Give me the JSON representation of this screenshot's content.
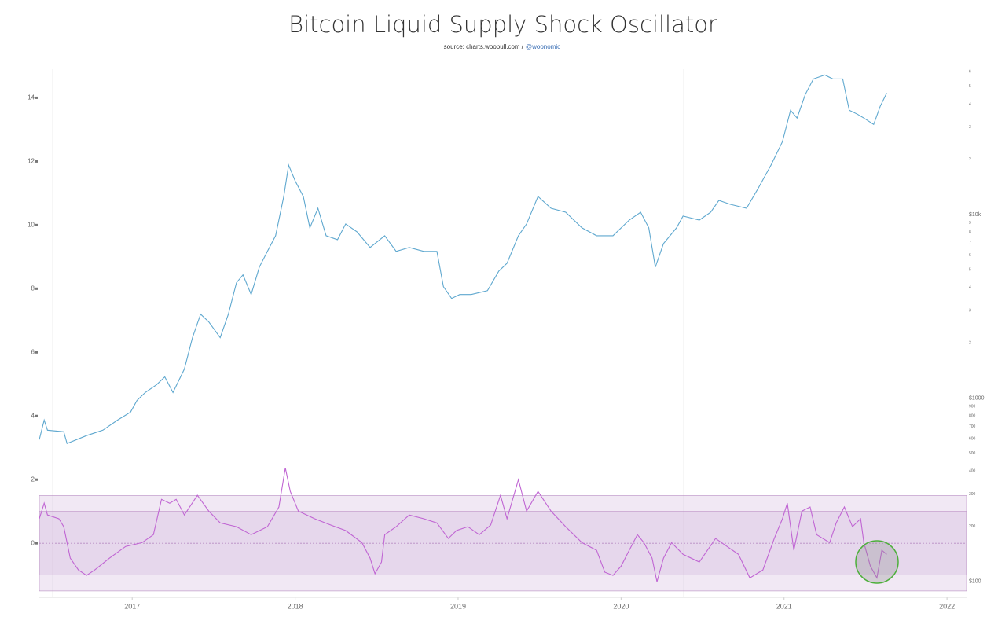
{
  "chart_data": {
    "type": "line",
    "title": "Bitcoin Liquid Supply Shock Oscillator",
    "source": "source: charts.woobull.com /",
    "handle": "@woonomic",
    "xlim": [
      2016.43,
      2022.12
    ],
    "xticks": [
      2017,
      2018,
      2019,
      2020,
      2021,
      2022
    ],
    "ylim": [
      -1.7,
      14.9
    ],
    "yticks": [
      0,
      2,
      4,
      6,
      8,
      10,
      12,
      14
    ],
    "y2lim": [
      82,
      62000
    ],
    "y2log": true,
    "y2ticks": [
      {
        "value": 100,
        "label": "$100"
      },
      200,
      300,
      400,
      500,
      600,
      700,
      800,
      900,
      {
        "value": 1000,
        "label": "$1000"
      },
      {
        "value": 2000,
        "label": "2"
      },
      {
        "value": 3000,
        "label": "3"
      },
      {
        "value": 4000,
        "label": "4"
      },
      {
        "value": 5000,
        "label": "5"
      },
      {
        "value": 6000,
        "label": "6"
      },
      {
        "value": 7000,
        "label": "7"
      },
      {
        "value": 8000,
        "label": "8"
      },
      {
        "value": 9000,
        "label": "9"
      },
      {
        "value": 10000,
        "label": "$10k"
      },
      {
        "value": 20000,
        "label": "2"
      },
      {
        "value": 30000,
        "label": "3"
      },
      {
        "value": 40000,
        "label": "4"
      },
      {
        "value": 50000,
        "label": "5"
      },
      {
        "value": 60000,
        "label": "6"
      }
    ],
    "bands": [
      {
        "from": -1.5,
        "to": 1.5
      },
      {
        "from": -1,
        "to": 1
      }
    ],
    "series": [
      {
        "color": "#5fa8cf",
        "axis": "y2",
        "x": [
          2016.43,
          2016.46,
          2016.48,
          2016.58,
          2016.6,
          2016.72,
          2016.82,
          2016.91,
          2016.99,
          2017.03,
          2017.08,
          2017.15,
          2017.2,
          2017.25,
          2017.32,
          2017.37,
          2017.42,
          2017.47,
          2017.54,
          2017.59,
          2017.64,
          2017.68,
          2017.73,
          2017.78,
          2017.83,
          2017.88,
          2017.93,
          2017.96,
          2018.0,
          2018.05,
          2018.09,
          2018.14,
          2018.19,
          2018.26,
          2018.31,
          2018.38,
          2018.46,
          2018.55,
          2018.62,
          2018.7,
          2018.79,
          2018.87,
          2018.91,
          2018.96,
          2019.01,
          2019.08,
          2019.18,
          2019.25,
          2019.3,
          2019.37,
          2019.42,
          2019.49,
          2019.57,
          2019.66,
          2019.76,
          2019.85,
          2019.95,
          2020.05,
          2020.12,
          2020.17,
          2020.21,
          2020.26,
          2020.34,
          2020.38,
          2020.48,
          2020.55,
          2020.6,
          2020.67,
          2020.77,
          2020.84,
          2020.92,
          2020.99,
          2021.04,
          2021.08,
          2021.13,
          2021.18,
          2021.25,
          2021.3,
          2021.36,
          2021.4,
          2021.45,
          2021.49,
          2021.55,
          2021.59,
          2021.63
        ],
        "values": [
          594,
          758,
          668,
          655,
          565,
          624,
          668,
          758,
          838,
          971,
          1072,
          1183,
          1304,
          1072,
          1440,
          2133,
          2865,
          2600,
          2133,
          2865,
          4250,
          4690,
          3665,
          5175,
          6300,
          7670,
          12540,
          18600,
          15270,
          12540,
          8460,
          10820,
          7670,
          7300,
          8890,
          8050,
          6620,
          7670,
          6300,
          6620,
          6300,
          6300,
          4045,
          3490,
          3665,
          3665,
          3850,
          4925,
          5430,
          7670,
          8890,
          12540,
          10820,
          10300,
          8460,
          7670,
          7670,
          9330,
          10300,
          8460,
          5175,
          6950,
          8460,
          9810,
          9330,
          10300,
          11940,
          11370,
          10820,
          13840,
          18600,
          24960,
          37000,
          33560,
          45080,
          54860,
          57650,
          54860,
          54860,
          37000,
          35240,
          33560,
          30980,
          38900,
          45940
        ]
      },
      {
        "color": "#c065d3",
        "x": [
          2016.43,
          2016.46,
          2016.48,
          2016.55,
          2016.58,
          2016.62,
          2016.67,
          2016.72,
          2016.77,
          2016.86,
          2016.96,
          2017.06,
          2017.13,
          2017.18,
          2017.23,
          2017.27,
          2017.32,
          2017.4,
          2017.47,
          2017.54,
          2017.64,
          2017.73,
          2017.83,
          2017.9,
          2017.94,
          2017.97,
          2018.02,
          2018.12,
          2018.22,
          2018.31,
          2018.41,
          2018.46,
          2018.49,
          2018.53,
          2018.55,
          2018.62,
          2018.7,
          2018.79,
          2018.87,
          2018.94,
          2018.99,
          2019.06,
          2019.13,
          2019.2,
          2019.26,
          2019.3,
          2019.37,
          2019.42,
          2019.49,
          2019.57,
          2019.66,
          2019.76,
          2019.85,
          2019.9,
          2019.95,
          2020.0,
          2020.05,
          2020.1,
          2020.14,
          2020.19,
          2020.22,
          2020.26,
          2020.31,
          2020.38,
          2020.48,
          2020.58,
          2020.65,
          2020.72,
          2020.79,
          2020.87,
          2020.94,
          2020.99,
          2021.02,
          2021.06,
          2021.11,
          2021.16,
          2021.2,
          2021.28,
          2021.32,
          2021.37,
          2021.42,
          2021.47,
          2021.49,
          2021.53,
          2021.57,
          2021.6,
          2021.63
        ],
        "values": [
          0.77,
          1.26,
          0.89,
          0.77,
          0.52,
          -0.47,
          -0.84,
          -1.01,
          -0.84,
          -0.47,
          -0.1,
          0.02,
          0.27,
          1.38,
          1.26,
          1.38,
          0.89,
          1.51,
          1.01,
          0.64,
          0.52,
          0.27,
          0.52,
          1.14,
          2.37,
          1.63,
          1.01,
          0.77,
          0.57,
          0.4,
          0.02,
          -0.47,
          -0.96,
          -0.59,
          0.27,
          0.52,
          0.89,
          0.77,
          0.64,
          0.15,
          0.4,
          0.52,
          0.27,
          0.57,
          1.51,
          0.77,
          2.0,
          1.01,
          1.63,
          1.01,
          0.52,
          0.02,
          -0.22,
          -0.91,
          -1.01,
          -0.72,
          -0.22,
          0.27,
          0.02,
          -0.47,
          -1.21,
          -0.47,
          0.02,
          -0.35,
          -0.59,
          0.15,
          -0.1,
          -0.35,
          -1.09,
          -0.84,
          0.15,
          0.77,
          1.26,
          -0.22,
          1.01,
          1.14,
          0.27,
          0.02,
          0.64,
          1.14,
          0.52,
          0.77,
          0.02,
          -0.72,
          -1.09,
          -0.22,
          -0.35
        ]
      }
    ]
  }
}
